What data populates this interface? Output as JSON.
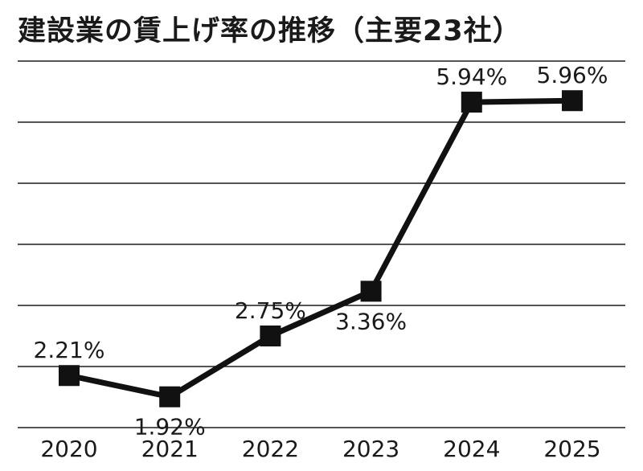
{
  "chart_data": {
    "type": "line",
    "title": "建設業の賃上げ率の推移（主要23社）",
    "categories": [
      "2020",
      "2021",
      "2022",
      "2023",
      "2024",
      "2025"
    ],
    "values": [
      2.21,
      1.92,
      2.75,
      3.36,
      5.94,
      5.96
    ],
    "data_labels": [
      "2.21%",
      "1.92%",
      "2.75%",
      "3.36%",
      "5.94%",
      "5.96%"
    ],
    "label_position": [
      "above",
      "below",
      "above",
      "below",
      "above",
      "above"
    ],
    "xlabel": "",
    "ylabel": "",
    "ylim": [
      1.5,
      6.5
    ],
    "grid": true,
    "colors": {
      "line": "#111111",
      "marker": "#111111",
      "grid": "#1a1a1a",
      "text": "#1a1a1a"
    }
  }
}
